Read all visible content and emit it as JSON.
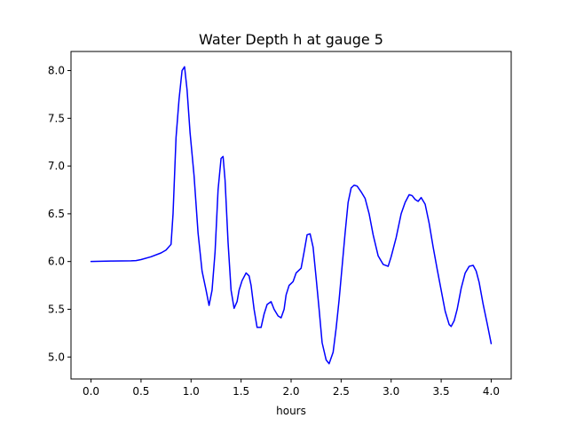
{
  "chart_data": {
    "type": "line",
    "title": "Water Depth h at gauge 5",
    "xlabel": "hours",
    "ylabel": "",
    "xlim": [
      -0.2,
      4.2
    ],
    "ylim": [
      4.77,
      8.2
    ],
    "xticks": [
      0.0,
      0.5,
      1.0,
      1.5,
      2.0,
      2.5,
      3.0,
      3.5,
      4.0
    ],
    "xtick_labels": [
      "0.0",
      "0.5",
      "1.0",
      "1.5",
      "2.0",
      "2.5",
      "3.0",
      "3.5",
      "4.0"
    ],
    "yticks": [
      5.0,
      5.5,
      6.0,
      6.5,
      7.0,
      7.5,
      8.0
    ],
    "ytick_labels": [
      "5.0",
      "5.5",
      "6.0",
      "6.5",
      "7.0",
      "7.5",
      "8.0"
    ],
    "grid": false,
    "legend": "none",
    "series": [
      {
        "color": "#0000ff",
        "x": [
          0.0,
          0.2,
          0.4,
          0.45,
          0.5,
          0.6,
          0.7,
          0.75,
          0.8,
          0.82,
          0.85,
          0.88,
          0.91,
          0.935,
          0.96,
          0.99,
          1.03,
          1.07,
          1.11,
          1.15,
          1.18,
          1.21,
          1.24,
          1.27,
          1.3,
          1.32,
          1.34,
          1.37,
          1.4,
          1.43,
          1.46,
          1.48,
          1.51,
          1.55,
          1.58,
          1.6,
          1.63,
          1.66,
          1.7,
          1.73,
          1.76,
          1.8,
          1.83,
          1.87,
          1.9,
          1.93,
          1.95,
          1.98,
          2.0,
          2.02,
          2.05,
          2.07,
          2.1,
          2.13,
          2.16,
          2.19,
          2.22,
          2.25,
          2.28,
          2.31,
          2.35,
          2.38,
          2.42,
          2.45,
          2.48,
          2.51,
          2.54,
          2.57,
          2.6,
          2.63,
          2.66,
          2.7,
          2.74,
          2.78,
          2.82,
          2.87,
          2.92,
          2.97,
          3.0,
          3.05,
          3.1,
          3.14,
          3.18,
          3.21,
          3.24,
          3.27,
          3.3,
          3.34,
          3.38,
          3.42,
          3.46,
          3.5,
          3.54,
          3.58,
          3.6,
          3.63,
          3.66,
          3.7,
          3.74,
          3.78,
          3.82,
          3.85,
          3.88,
          3.92,
          3.96,
          4.0
        ],
        "y": [
          6.0,
          6.005,
          6.008,
          6.01,
          6.02,
          6.05,
          6.09,
          6.12,
          6.18,
          6.5,
          7.3,
          7.7,
          8.0,
          8.04,
          7.8,
          7.35,
          6.9,
          6.3,
          5.9,
          5.7,
          5.54,
          5.7,
          6.1,
          6.75,
          7.08,
          7.1,
          6.85,
          6.2,
          5.7,
          5.51,
          5.58,
          5.7,
          5.8,
          5.88,
          5.85,
          5.75,
          5.5,
          5.31,
          5.31,
          5.45,
          5.55,
          5.58,
          5.5,
          5.43,
          5.41,
          5.5,
          5.65,
          5.75,
          5.77,
          5.79,
          5.88,
          5.9,
          5.93,
          6.1,
          6.28,
          6.29,
          6.15,
          5.83,
          5.5,
          5.15,
          4.97,
          4.93,
          5.05,
          5.3,
          5.6,
          5.95,
          6.3,
          6.62,
          6.77,
          6.8,
          6.79,
          6.73,
          6.66,
          6.5,
          6.28,
          6.06,
          5.97,
          5.95,
          6.05,
          6.25,
          6.5,
          6.62,
          6.7,
          6.69,
          6.65,
          6.63,
          6.67,
          6.6,
          6.4,
          6.15,
          5.92,
          5.7,
          5.48,
          5.34,
          5.32,
          5.38,
          5.5,
          5.72,
          5.88,
          5.95,
          5.96,
          5.9,
          5.78,
          5.55,
          5.35,
          5.14
        ]
      }
    ]
  }
}
